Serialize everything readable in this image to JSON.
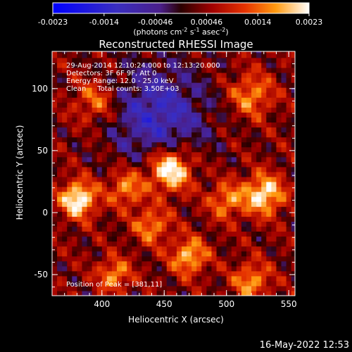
{
  "chart_data": {
    "type": "heatmap",
    "title": "Reconstructed RHESSI Image",
    "xlabel": "Heliocentric X (arcsec)",
    "ylabel": "Heliocentric Y (arcsec)",
    "xlim": [
      360,
      555
    ],
    "ylim": [
      -67,
      130
    ],
    "x_ticks": [
      400,
      450,
      500,
      550
    ],
    "y_ticks": [
      -50,
      0,
      50,
      100
    ],
    "colorbar": {
      "ticks": [
        "-0.0023",
        "-0.0014",
        "-0.00046",
        "0.00046",
        "0.0014",
        "0.0023"
      ],
      "range": [
        -0.0023,
        0.0023
      ],
      "units_prefix": "(photons cm",
      "units_exp1": "-2",
      "units_mid1": " s",
      "units_exp2": "-1",
      "units_mid2": " asec",
      "units_exp3": "-2",
      "units_suffix": ")"
    },
    "annotations": [
      "29-Aug-2014 12:10:24.000 to 12:13:20.000",
      "Detectors: 3F 6F 9F, Att 0",
      "Energy Range: 12.0 - 25.0 keV",
      "Clean     Total counts: 3.50E+03"
    ],
    "peak_label": "Position of Peak = [381,11]",
    "peaks": [
      {
        "x": 455,
        "y": 35,
        "level": 1.0,
        "sigma": 12
      },
      {
        "x": 381,
        "y": 11,
        "level": 0.95,
        "sigma": 10
      },
      {
        "x": 530,
        "y": 15,
        "level": 0.85,
        "sigma": 11
      },
      {
        "x": 470,
        "y": -35,
        "level": 0.7,
        "sigma": 10
      },
      {
        "x": 410,
        "y": -50,
        "level": 0.6,
        "sigma": 9
      },
      {
        "x": 520,
        "y": -55,
        "level": 0.6,
        "sigma": 10
      },
      {
        "x": 520,
        "y": 95,
        "level": 0.55,
        "sigma": 12
      },
      {
        "x": 395,
        "y": 90,
        "level": 0.5,
        "sigma": 12
      },
      {
        "x": 420,
        "y": 20,
        "level": 0.6,
        "sigma": 10
      },
      {
        "x": 500,
        "y": 10,
        "level": 0.55,
        "sigma": 10
      },
      {
        "x": 440,
        "y": -10,
        "level": 0.55,
        "sigma": 10
      }
    ],
    "background_level": 0.45,
    "negative_region": {
      "x": 445,
      "y": 80,
      "level": -0.6,
      "sigma": 28
    }
  },
  "footer": {
    "timestamp": "16-May-2022 12:53"
  }
}
